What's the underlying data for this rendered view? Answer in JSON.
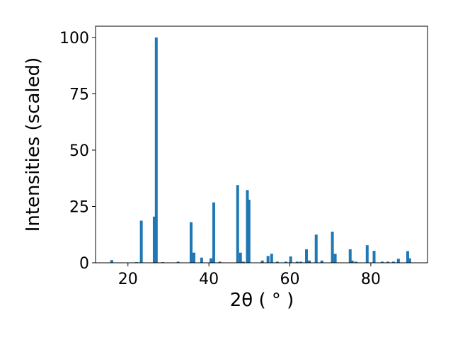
{
  "chart_data": {
    "type": "bar",
    "x_label": "2θ ( ° )",
    "y_label": "Intensities (scaled)",
    "color": "#1f77b4",
    "x": [
      16.0,
      22.1,
      23.3,
      26.5,
      27.0,
      28.6,
      32.4,
      35.6,
      36.3,
      38.2,
      40.5,
      41.2,
      42.7,
      47.1,
      47.8,
      48.5,
      49.5,
      49.9,
      53.2,
      54.6,
      55.5,
      56.9,
      59.0,
      60.2,
      61.8,
      62.7,
      64.1,
      64.8,
      66.5,
      67.9,
      70.5,
      71.2,
      74.9,
      75.4,
      76.3,
      79.1,
      80.8,
      82.8,
      84.2,
      85.6,
      86.8,
      89.1,
      89.6
    ],
    "values": [
      1.2,
      0.3,
      18.7,
      20.5,
      100,
      0.3,
      0.5,
      18,
      4.5,
      2.3,
      2,
      26.8,
      0.5,
      34.5,
      4.5,
      0.5,
      32.3,
      28,
      1,
      3,
      4,
      0.5,
      0.5,
      2.8,
      0.5,
      0.5,
      6,
      1,
      12.5,
      1,
      13.8,
      4,
      6,
      1,
      0.5,
      7.8,
      5.3,
      0.5,
      0.5,
      0.5,
      1.8,
      5.2,
      2
    ],
    "xlim": [
      12,
      94
    ],
    "ylim": [
      0,
      105
    ],
    "xticks": [
      20,
      40,
      60,
      80
    ],
    "yticks": [
      0,
      25,
      50,
      75,
      100
    ]
  }
}
